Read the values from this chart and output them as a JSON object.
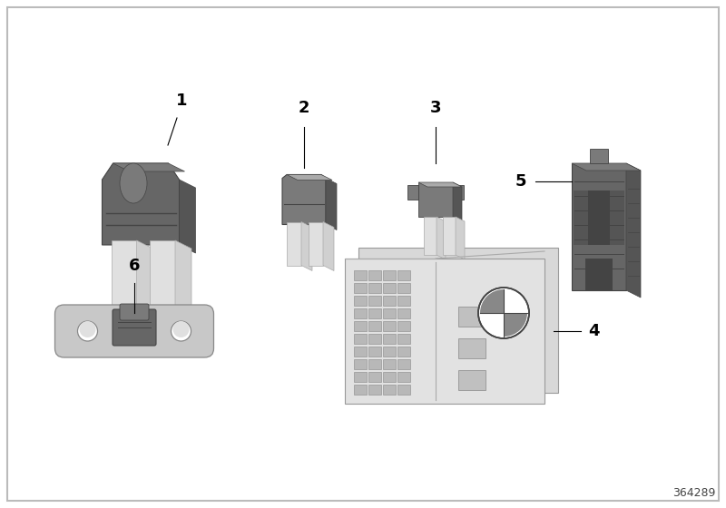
{
  "bg_color": "#ffffff",
  "border_color": "#bbbbbb",
  "diagram_id": "364289",
  "dark_gray": "#666666",
  "dark_gray2": "#555555",
  "mid_gray": "#7a7a7a",
  "light_gray": "#aaaaaa",
  "lighter_gray": "#c8c8c8",
  "silver": "#d0d0d0",
  "silver2": "#e0e0e0",
  "shadow": "#444444",
  "card_bg": "#e2e2e2",
  "card_bg2": "#d5d5d5"
}
